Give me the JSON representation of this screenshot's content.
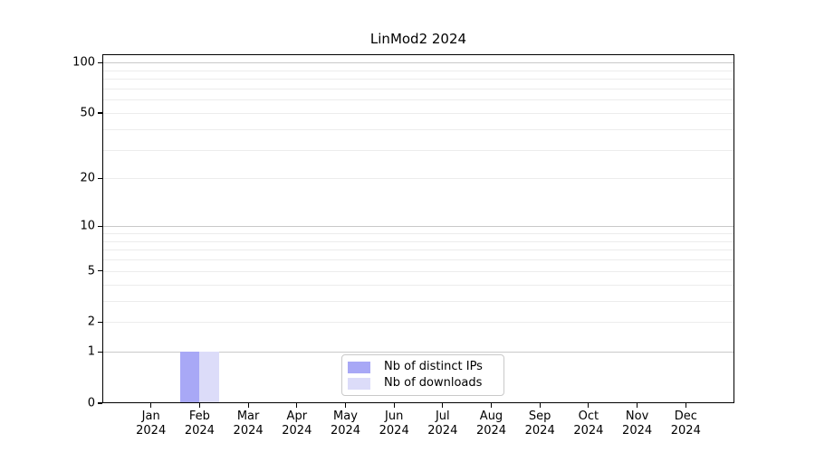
{
  "chart_data": {
    "type": "bar",
    "title": "LinMod2 2024",
    "categories": [
      "Jan",
      "Feb",
      "Mar",
      "Apr",
      "May",
      "Jun",
      "Jul",
      "Aug",
      "Sep",
      "Oct",
      "Nov",
      "Dec"
    ],
    "year_label": "2024",
    "series": [
      {
        "name": "Nb of distinct IPs",
        "color": "#a8a8f6",
        "values": [
          0,
          1,
          0,
          0,
          0,
          0,
          0,
          0,
          0,
          0,
          0,
          0
        ]
      },
      {
        "name": "Nb of downloads",
        "color": "#dcdcf9",
        "values": [
          0,
          1,
          0,
          0,
          0,
          0,
          0,
          0,
          0,
          0,
          0,
          0
        ]
      }
    ],
    "yscale": "log1p",
    "ylim": [
      0,
      112
    ],
    "yticks": [
      {
        "value": 0,
        "label": "0"
      },
      {
        "value": 1,
        "label": "1"
      },
      {
        "value": 2,
        "label": "2"
      },
      {
        "value": 5,
        "label": "5"
      },
      {
        "value": 10,
        "label": "10"
      },
      {
        "value": 20,
        "label": "20"
      },
      {
        "value": 50,
        "label": "50"
      },
      {
        "value": 100,
        "label": "100"
      }
    ],
    "grid": {
      "minor_values": [
        2,
        3,
        4,
        5,
        6,
        7,
        8,
        9,
        20,
        30,
        40,
        50,
        60,
        70,
        80,
        90
      ],
      "major_values": [
        1,
        10,
        100
      ],
      "minor_color": "#ececec",
      "major_color": "#c9c9c9"
    },
    "legend_position": "lower center"
  }
}
